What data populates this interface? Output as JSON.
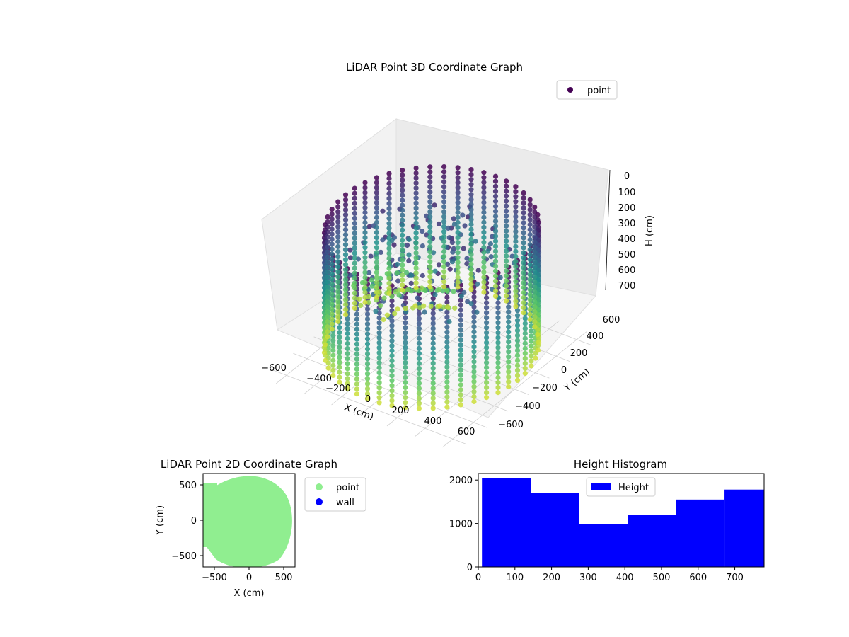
{
  "chart_data": [
    {
      "type": "scatter",
      "projection": "3d",
      "title": "LiDAR Point 3D Coordinate Graph",
      "xlabel": "X (cm)",
      "ylabel": "Y (cm)",
      "zlabel": "H (cm)",
      "xlim": [
        -700,
        700
      ],
      "ylim": [
        -700,
        700
      ],
      "zlim": [
        0,
        780
      ],
      "z_inverted": true,
      "xticks": [
        "−600",
        "−400",
        "−200",
        "0",
        "200",
        "400",
        "600"
      ],
      "yticks": [
        "−600",
        "−400",
        "−200",
        "0",
        "200",
        "400",
        "600"
      ],
      "zticks": [
        "0",
        "100",
        "200",
        "300",
        "400",
        "500",
        "600",
        "700"
      ],
      "legend": {
        "labels": [
          "point"
        ],
        "placement": "upper-right"
      },
      "colormap": "viridis",
      "grid": true,
      "series": [
        {
          "name": "point",
          "description_of_shape": "ring of vertical columns around origin, radius about 600 cm, heights 0 to 780 cm",
          "color": "#440154"
        }
      ]
    },
    {
      "type": "scatter",
      "title": "LiDAR Point 2D Coordinate Graph",
      "xlabel": "X (cm)",
      "ylabel": "Y (cm)",
      "xlim": [
        -650,
        650
      ],
      "ylim": [
        -650,
        650
      ],
      "xticks": [
        "−500",
        "0",
        "500"
      ],
      "yticks": [
        "−500",
        "0",
        "500"
      ],
      "legend": {
        "labels": [
          "point",
          "wall"
        ],
        "placement": "outside-right"
      },
      "series": [
        {
          "name": "point",
          "color": "#90ee90"
        },
        {
          "name": "wall",
          "color": "#0000ff"
        }
      ]
    },
    {
      "type": "bar",
      "title": "Height Histogram",
      "xlabel": "",
      "ylabel": "",
      "xlim": [
        0,
        780
      ],
      "ylim": [
        0,
        2150
      ],
      "xticks": [
        "0",
        "100",
        "200",
        "300",
        "400",
        "500",
        "600",
        "700"
      ],
      "yticks": [
        "0",
        "1000",
        "2000"
      ],
      "legend": {
        "labels": [
          "Height"
        ],
        "placement": "upper-center"
      },
      "bins": [
        {
          "x0": 10,
          "x1": 143,
          "count": 2040
        },
        {
          "x0": 143,
          "x1": 275,
          "count": 1700
        },
        {
          "x0": 275,
          "x1": 408,
          "count": 980
        },
        {
          "x0": 408,
          "x1": 540,
          "count": 1190
        },
        {
          "x0": 540,
          "x1": 672,
          "count": 1550
        },
        {
          "x0": 672,
          "x1": 780,
          "count": 1780
        }
      ],
      "color": "#0000ff"
    }
  ]
}
